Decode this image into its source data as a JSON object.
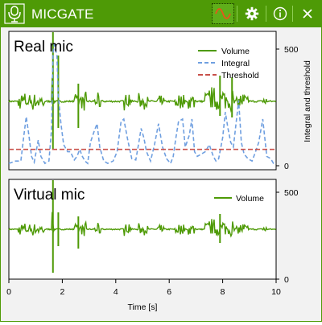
{
  "window": {
    "title": "MICGATE"
  },
  "toolbar": {
    "buttons": [
      {
        "name": "waveform-icon",
        "active": true
      },
      {
        "name": "gear-icon",
        "active": false
      },
      {
        "name": "info-icon",
        "active": false
      },
      {
        "name": "close-icon",
        "active": false
      }
    ]
  },
  "colors": {
    "accent": "#4e9a06",
    "volume": "#4e9a06",
    "integral": "#6f9fe0",
    "threshold": "#c8504a"
  },
  "chart_data": [
    {
      "type": "line",
      "title": "Real mic",
      "xlim": [
        0,
        10
      ],
      "ylim_right": [
        0,
        500
      ],
      "yticks_right": [
        "0",
        "500"
      ],
      "ylabel_right": "Integral and threshold",
      "legend": {
        "position": "top-right",
        "entries": [
          "Volume",
          "Integral",
          "Threshold"
        ]
      },
      "series": [
        {
          "name": "Volume",
          "style": "solid"
        },
        {
          "name": "Integral",
          "style": "dashed",
          "x": [
            0,
            0.25,
            0.45,
            0.55,
            0.65,
            0.75,
            0.85,
            0.95,
            1.1,
            1.2,
            1.35,
            1.5,
            1.6,
            1.65,
            1.7,
            1.8,
            1.85,
            1.95,
            2.05,
            2.2,
            2.3,
            2.45,
            2.55,
            2.65,
            2.75,
            2.85,
            2.95,
            3.05,
            3.2,
            3.3,
            3.4,
            3.55,
            3.7,
            3.8,
            3.9,
            4.05,
            4.2,
            4.3,
            4.45,
            4.6,
            4.75,
            4.85,
            4.95,
            5.05,
            5.15,
            5.3,
            5.45,
            5.6,
            5.75,
            5.9,
            6.05,
            6.15,
            6.25,
            6.35,
            6.5,
            6.6,
            6.75,
            6.85,
            6.95,
            7.05,
            7.2,
            7.35,
            7.5,
            7.65,
            7.75,
            7.85,
            8,
            8.1,
            8.2,
            8.3,
            8.4,
            8.5,
            8.6,
            8.7,
            8.8,
            8.95,
            9.1,
            9.2,
            9.35,
            9.5,
            9.65,
            9.8,
            9.9,
            10
          ],
          "y": [
            10,
            20,
            20,
            120,
            210,
            130,
            40,
            15,
            110,
            40,
            10,
            20,
            160,
            480,
            520,
            470,
            300,
            180,
            90,
            60,
            60,
            25,
            40,
            70,
            40,
            20,
            10,
            100,
            150,
            180,
            80,
            20,
            10,
            15,
            20,
            60,
            190,
            200,
            110,
            30,
            25,
            90,
            160,
            120,
            60,
            20,
            90,
            180,
            80,
            30,
            10,
            40,
            120,
            190,
            200,
            80,
            130,
            200,
            60,
            40,
            50,
            60,
            90,
            40,
            20,
            30,
            120,
            230,
            160,
            100,
            80,
            180,
            280,
            100,
            50,
            30,
            20,
            50,
            100,
            200,
            40,
            30,
            10,
            10
          ]
        },
        {
          "name": "Threshold",
          "style": "dashed",
          "value": 70
        }
      ]
    },
    {
      "type": "line",
      "title": "Virtual mic",
      "xlim": [
        0,
        10
      ],
      "ylim_right": [
        0,
        500
      ],
      "yticks_right": [
        "0",
        "500"
      ],
      "xlabel": "Time [s]",
      "xticks": [
        "0",
        "2",
        "4",
        "6",
        "8",
        "10"
      ],
      "legend": {
        "position": "top-right",
        "entries": [
          "Volume"
        ]
      },
      "series": [
        {
          "name": "Volume",
          "style": "solid"
        }
      ]
    }
  ]
}
